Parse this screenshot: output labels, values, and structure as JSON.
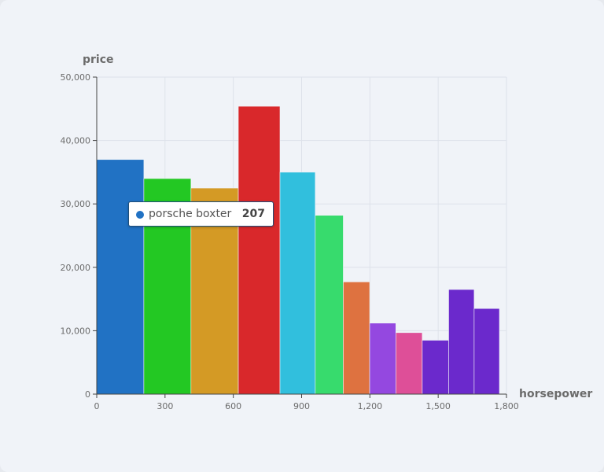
{
  "chart_data": {
    "type": "bar",
    "xlabel": "horsepower",
    "ylabel": "price",
    "xlim": [
      0,
      1800
    ],
    "ylim": [
      0,
      50000
    ],
    "x_ticks": [
      "0",
      "300",
      "600",
      "900",
      "1,200",
      "1,500",
      "1,800"
    ],
    "y_ticks": [
      "0",
      "10,000",
      "20,000",
      "30,000",
      "40,000",
      "50,000"
    ],
    "grid": true,
    "bars": [
      {
        "x0": 0,
        "x1": 207,
        "value": 37000,
        "color": "#2172c4"
      },
      {
        "x0": 207,
        "x1": 414,
        "value": 34000,
        "color": "#23c823"
      },
      {
        "x0": 414,
        "x1": 622,
        "value": 32500,
        "color": "#d49a25"
      },
      {
        "x0": 622,
        "x1": 805,
        "value": 45400,
        "color": "#d9282b"
      },
      {
        "x0": 805,
        "x1": 960,
        "value": 35000,
        "color": "#31bfdd"
      },
      {
        "x0": 960,
        "x1": 1083,
        "value": 28200,
        "color": "#37db6d"
      },
      {
        "x0": 1083,
        "x1": 1199,
        "value": 17700,
        "color": "#de7240"
      },
      {
        "x0": 1199,
        "x1": 1314,
        "value": 11200,
        "color": "#9448e0"
      },
      {
        "x0": 1314,
        "x1": 1430,
        "value": 9700,
        "color": "#de4f98"
      },
      {
        "x0": 1430,
        "x1": 1546,
        "value": 8500,
        "color": "#6b29cc"
      },
      {
        "x0": 1546,
        "x1": 1658,
        "value": 16500,
        "color": "#6b29cc"
      },
      {
        "x0": 1658,
        "x1": 1769,
        "value": 13500,
        "color": "#6b29cc"
      }
    ],
    "tooltip": {
      "label": "porsche boxter",
      "value": "207",
      "color": "#2172c4"
    }
  }
}
